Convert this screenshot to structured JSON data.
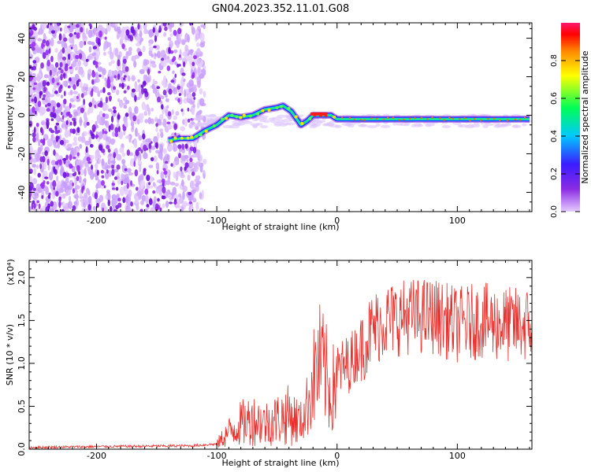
{
  "title": "GN04.2023.352.11.01.G08",
  "chart_data": [
    {
      "type": "heatmap",
      "xlabel": "Height of straight line (km)",
      "ylabel": "Frequency (Hz)",
      "xlim": [
        -256,
        162
      ],
      "ylim": [
        -50,
        48
      ],
      "xticks": [
        -200,
        -100,
        0,
        100
      ],
      "yticks": [
        40,
        20,
        0,
        -20,
        -40
      ],
      "colorbar": {
        "label": "Normalized spectral amplitude",
        "range": [
          0,
          1
        ],
        "ticks": [
          "0.0",
          "0.2",
          "0.4",
          "0.6",
          "0.8"
        ],
        "colors": [
          "#d9b8ff",
          "#8a2be2",
          "#3b1cff",
          "#00c8ff",
          "#00ff66",
          "#ffff00",
          "#ff8800",
          "#ff0000",
          "#ff2277"
        ]
      },
      "ridge": {
        "x": [
          -140,
          -130,
          -120,
          -110,
          -100,
          -90,
          -80,
          -70,
          -60,
          -50,
          -45,
          -38,
          -30,
          -25,
          -20,
          -15,
          -10,
          -5,
          0,
          20,
          60,
          100,
          160
        ],
        "y": [
          -13,
          -12,
          -12,
          -8,
          -5,
          0,
          -1,
          0,
          3,
          4,
          5,
          2,
          -5,
          -3,
          0,
          0,
          0,
          0,
          -2,
          -2,
          -2,
          -2,
          -2
        ]
      }
    },
    {
      "type": "line",
      "xlabel": "Height of straight line (km)",
      "ylabel": "SNR (10 * v/v)",
      "y_multiplier": "(x10⁴)",
      "xlim": [
        -256,
        162
      ],
      "ylim": [
        0,
        2.2
      ],
      "xticks": [
        -200,
        -100,
        0,
        100
      ],
      "yticks": [
        "0.0",
        "0.5",
        "1.0",
        "1.5",
        "2.0"
      ],
      "color": "#e8312d",
      "envelope": {
        "x": [
          -256,
          -200,
          -120,
          -100,
          -90,
          -80,
          -70,
          -60,
          -50,
          -40,
          -30,
          -25,
          -20,
          -15,
          -10,
          -5,
          0,
          10,
          20,
          30,
          40,
          60,
          80,
          100,
          120,
          140,
          162
        ],
        "y": [
          0.02,
          0.03,
          0.04,
          0.06,
          0.2,
          0.3,
          0.35,
          0.3,
          0.35,
          0.4,
          0.3,
          0.5,
          0.8,
          1.0,
          0.9,
          0.6,
          0.9,
          1.0,
          1.2,
          1.4,
          1.5,
          1.55,
          1.55,
          1.45,
          1.5,
          1.45,
          1.45
        ]
      }
    }
  ]
}
